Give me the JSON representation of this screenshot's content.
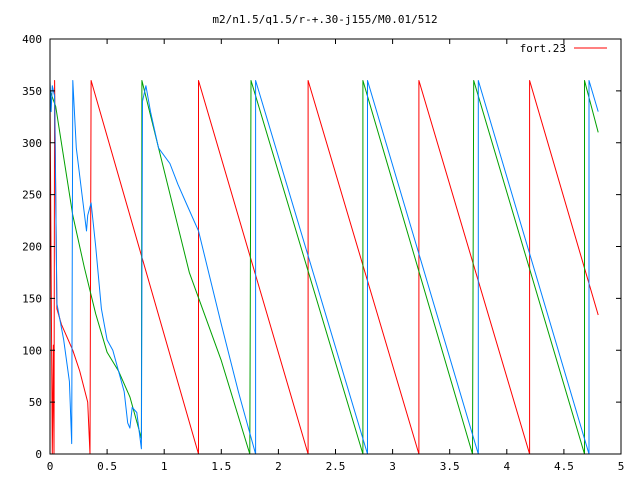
{
  "chart_data": {
    "type": "line",
    "title": "m2/n1.5/q1.5/r-+.30-j155/M0.01/512",
    "xlim": [
      0,
      5
    ],
    "ylim": [
      0,
      400
    ],
    "xticks": [
      0,
      0.5,
      1,
      1.5,
      2,
      2.5,
      3,
      3.5,
      4,
      4.5,
      5
    ],
    "xtick_labels": [
      "0",
      "0.5",
      "1",
      "1.5",
      "2",
      "2.5",
      "3",
      "3.5",
      "4",
      "4.5",
      "5"
    ],
    "yticks": [
      0,
      50,
      100,
      150,
      200,
      250,
      300,
      350,
      400
    ],
    "ytick_labels": [
      "0",
      "50",
      "100",
      "150",
      "200",
      "250",
      "300",
      "350",
      "400"
    ],
    "grid": false,
    "legend_position": "top-right",
    "series": [
      {
        "name": "fort.23",
        "color": "#ff0000",
        "points": [
          [
            0,
            348
          ],
          [
            0.02,
            0
          ],
          [
            0.03,
            105
          ],
          [
            0.035,
            0
          ],
          [
            0.04,
            360
          ],
          [
            0.06,
            140
          ],
          [
            0.1,
            125
          ],
          [
            0.2,
            100
          ],
          [
            0.26,
            80
          ],
          [
            0.33,
            50
          ],
          [
            0.35,
            0
          ],
          [
            0.36,
            360
          ],
          [
            1.3,
            0
          ],
          [
            1.3,
            360
          ],
          [
            2.26,
            0
          ],
          [
            2.26,
            360
          ],
          [
            3.23,
            0
          ],
          [
            3.23,
            360
          ],
          [
            4.2,
            0
          ],
          [
            4.2,
            360
          ],
          [
            4.8,
            134
          ]
        ]
      },
      {
        "name": "",
        "color": "#00a000",
        "points": [
          [
            0,
            350
          ],
          [
            0.05,
            335
          ],
          [
            0.1,
            300
          ],
          [
            0.15,
            265
          ],
          [
            0.2,
            230
          ],
          [
            0.3,
            180
          ],
          [
            0.4,
            135
          ],
          [
            0.5,
            98
          ],
          [
            0.6,
            80
          ],
          [
            0.7,
            55
          ],
          [
            0.8,
            15
          ],
          [
            0.805,
            360
          ],
          [
            1.22,
            175
          ],
          [
            1.5,
            90
          ],
          [
            1.75,
            0
          ],
          [
            1.76,
            360
          ],
          [
            2.74,
            0
          ],
          [
            2.74,
            360
          ],
          [
            3.7,
            0
          ],
          [
            3.71,
            360
          ],
          [
            4.68,
            0
          ],
          [
            4.68,
            360
          ],
          [
            4.8,
            310
          ]
        ]
      },
      {
        "name": "",
        "color": "#0080ff",
        "points": [
          [
            0,
            360
          ],
          [
            0.01,
            330
          ],
          [
            0.02,
            355
          ],
          [
            0.04,
            345
          ],
          [
            0.06,
            145
          ],
          [
            0.12,
            110
          ],
          [
            0.17,
            70
          ],
          [
            0.19,
            10
          ],
          [
            0.2,
            360
          ],
          [
            0.23,
            295
          ],
          [
            0.28,
            250
          ],
          [
            0.32,
            215
          ],
          [
            0.33,
            230
          ],
          [
            0.36,
            242
          ],
          [
            0.4,
            200
          ],
          [
            0.45,
            140
          ],
          [
            0.5,
            110
          ],
          [
            0.55,
            100
          ],
          [
            0.6,
            80
          ],
          [
            0.65,
            60
          ],
          [
            0.68,
            30
          ],
          [
            0.7,
            25
          ],
          [
            0.72,
            45
          ],
          [
            0.76,
            40
          ],
          [
            0.8,
            5
          ],
          [
            0.81,
            340
          ],
          [
            0.84,
            355
          ],
          [
            0.88,
            330
          ],
          [
            0.95,
            295
          ],
          [
            1.05,
            280
          ],
          [
            1.12,
            260
          ],
          [
            1.2,
            240
          ],
          [
            1.3,
            215
          ],
          [
            1.4,
            170
          ],
          [
            1.5,
            125
          ],
          [
            1.65,
            60
          ],
          [
            1.8,
            0
          ],
          [
            1.8,
            360
          ],
          [
            2.78,
            0
          ],
          [
            2.78,
            360
          ],
          [
            3.75,
            0
          ],
          [
            3.75,
            360
          ],
          [
            4.72,
            0
          ],
          [
            4.72,
            360
          ],
          [
            4.8,
            330
          ]
        ]
      }
    ]
  }
}
